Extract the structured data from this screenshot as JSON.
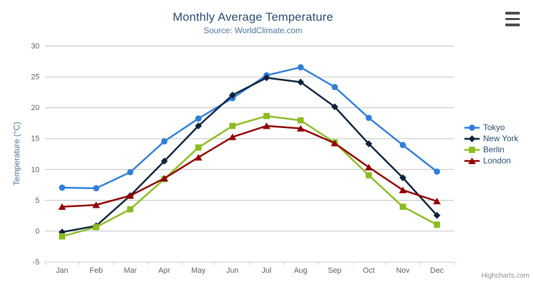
{
  "chart_data": {
    "type": "line",
    "title": "Monthly Average Temperature",
    "subtitle": "Source: WorldClimate.com",
    "categories": [
      "Jan",
      "Feb",
      "Mar",
      "Apr",
      "May",
      "Jun",
      "Jul",
      "Aug",
      "Sep",
      "Oct",
      "Nov",
      "Dec"
    ],
    "xlabel": "",
    "ylabel": "Temperature (°C)",
    "ylim": [
      -5,
      30
    ],
    "yticks": [
      -5,
      0,
      5,
      10,
      15,
      20,
      25,
      30
    ],
    "grid": true,
    "legend_position": "right",
    "series": [
      {
        "name": "Tokyo",
        "color": "#2f7ed8",
        "marker": "circle",
        "values": [
          7.0,
          6.9,
          9.5,
          14.5,
          18.2,
          21.5,
          25.2,
          26.5,
          23.3,
          18.3,
          13.9,
          9.6
        ]
      },
      {
        "name": "New York",
        "color": "#0d233a",
        "marker": "diamond",
        "values": [
          -0.2,
          0.8,
          5.7,
          11.3,
          17.0,
          22.0,
          24.8,
          24.1,
          20.1,
          14.1,
          8.6,
          2.5
        ]
      },
      {
        "name": "Berlin",
        "color": "#8bbc21",
        "marker": "square",
        "values": [
          -0.9,
          0.6,
          3.5,
          8.4,
          13.5,
          17.0,
          18.6,
          17.9,
          14.3,
          9.0,
          3.9,
          1.0
        ]
      },
      {
        "name": "London",
        "color": "#910000",
        "marker": "triangle",
        "values": [
          3.9,
          4.2,
          5.7,
          8.5,
          11.9,
          15.2,
          17.0,
          16.6,
          14.2,
          10.3,
          6.6,
          4.8
        ]
      }
    ],
    "credits": "Highcharts.com"
  },
  "icons": {
    "export_menu": "hamburger-icon"
  },
  "colors": {
    "title": "#274b6d",
    "subtitle": "#4d759e",
    "axis_title": "#4d759e",
    "axis_labels": "#606060",
    "grid": "#c0c0c0",
    "axis_line": "#c0d0e0",
    "legend_text": "#274b6d",
    "credits": "#909090",
    "menu_icon": "#4d4d4d",
    "background": "#ffffff"
  }
}
